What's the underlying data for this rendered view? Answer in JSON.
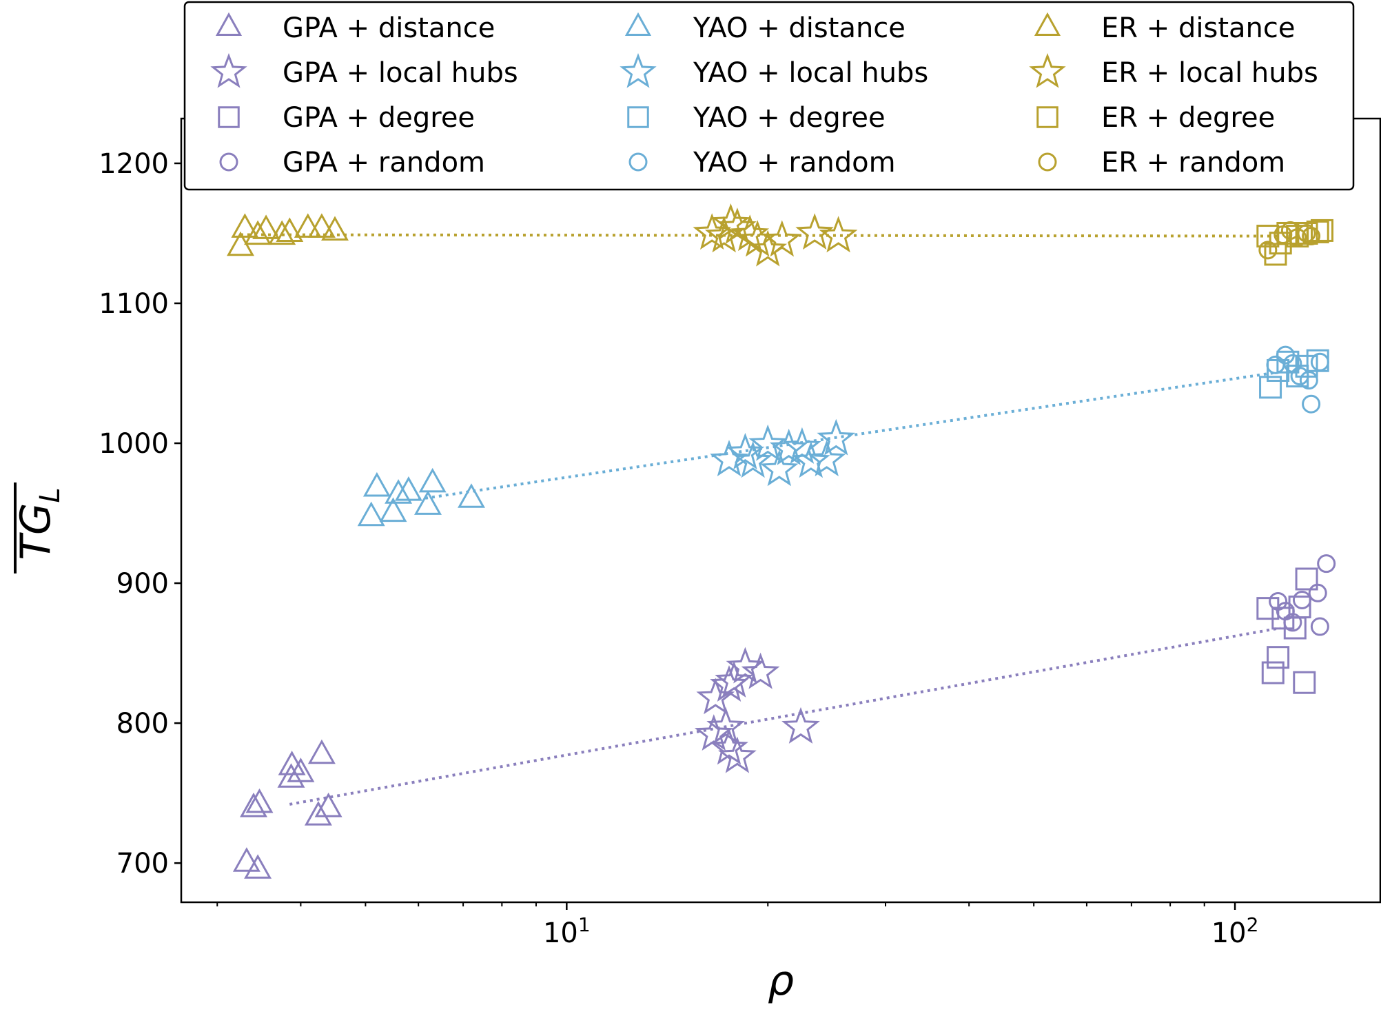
{
  "chart_data": {
    "type": "scatter",
    "xscale": "log",
    "xlim": [
      2.65,
      165
    ],
    "ylim": [
      672,
      1232
    ],
    "grid": false,
    "legend_position": "top",
    "xlabel": "ρ",
    "ylabel": "TG_L",
    "xticks": [
      {
        "value": 10,
        "base": "10",
        "exp": "1"
      },
      {
        "value": 100,
        "base": "10",
        "exp": "2"
      }
    ],
    "yticks": [
      700,
      800,
      900,
      1000,
      1100,
      1200
    ],
    "marker_shapes": {
      "distance": "triangle",
      "local hubs": "star",
      "degree": "square",
      "random": "circle"
    },
    "colors": {
      "GPA": "#8a7fbd",
      "YAO": "#6aaed6",
      "ER": "#b8a12e"
    },
    "series": [
      {
        "name": "GPA + distance",
        "color": "#8a7fbd",
        "marker": "triangle",
        "points": [
          [
            3.32,
            700
          ],
          [
            3.45,
            695
          ],
          [
            3.4,
            739
          ],
          [
            3.47,
            742
          ],
          [
            3.88,
            769
          ],
          [
            3.87,
            760
          ],
          [
            4.0,
            764
          ],
          [
            4.25,
            733
          ],
          [
            4.4,
            739
          ],
          [
            4.3,
            777
          ]
        ]
      },
      {
        "name": "GPA + local hubs",
        "color": "#8a7fbd",
        "marker": "star",
        "points": [
          [
            16.6,
            792
          ],
          [
            16.7,
            818
          ],
          [
            17.3,
            797
          ],
          [
            17.5,
            827
          ],
          [
            17.8,
            830
          ],
          [
            17.5,
            782
          ],
          [
            18.0,
            776
          ],
          [
            18.5,
            840
          ],
          [
            19.5,
            836
          ],
          [
            22.4,
            797
          ]
        ]
      },
      {
        "name": "GPA + degree",
        "color": "#8a7fbd",
        "marker": "square",
        "points": [
          [
            112,
            882
          ],
          [
            118,
            875
          ],
          [
            116,
            847
          ],
          [
            114,
            836
          ],
          [
            123,
            868
          ],
          [
            128,
            903
          ],
          [
            127,
            829
          ],
          [
            125,
            883
          ]
        ]
      },
      {
        "name": "GPA + random",
        "color": "#8a7fbd",
        "marker": "circle",
        "points": [
          [
            116,
            887
          ],
          [
            119,
            880
          ],
          [
            122,
            872
          ],
          [
            126,
            888
          ],
          [
            133,
            893
          ],
          [
            134,
            869
          ],
          [
            137,
            914
          ]
        ]
      },
      {
        "name": "GPA fit",
        "color": "#8a7fbd",
        "marker": "dotted-line",
        "points": [
          [
            3.85,
            742
          ],
          [
            117,
            868
          ]
        ]
      },
      {
        "name": "YAO + distance",
        "color": "#6aaed6",
        "marker": "triangle",
        "points": [
          [
            5.1,
            947
          ],
          [
            5.2,
            968
          ],
          [
            5.5,
            950
          ],
          [
            5.6,
            963
          ],
          [
            5.8,
            965
          ],
          [
            6.2,
            955
          ],
          [
            6.3,
            971
          ],
          [
            7.2,
            960
          ]
        ]
      },
      {
        "name": "YAO + local hubs",
        "color": "#6aaed6",
        "marker": "star",
        "points": [
          [
            17.5,
            988
          ],
          [
            18.5,
            993
          ],
          [
            19.0,
            987
          ],
          [
            20.0,
            999
          ],
          [
            20.8,
            981
          ],
          [
            21.5,
            996
          ],
          [
            22.5,
            997
          ],
          [
            23.2,
            987
          ],
          [
            24.5,
            988
          ],
          [
            25.3,
            1003
          ]
        ]
      },
      {
        "name": "YAO + degree",
        "color": "#6aaed6",
        "marker": "square",
        "points": [
          [
            113,
            1040
          ],
          [
            116,
            1052
          ],
          [
            120,
            1058
          ],
          [
            124,
            1048
          ],
          [
            128,
            1055
          ],
          [
            133,
            1059
          ]
        ]
      },
      {
        "name": "YAO + random",
        "color": "#6aaed6",
        "marker": "circle",
        "points": [
          [
            115,
            1056
          ],
          [
            119,
            1063
          ],
          [
            122,
            1057
          ],
          [
            125,
            1048
          ],
          [
            129,
            1045
          ],
          [
            130,
            1028
          ],
          [
            134,
            1058
          ]
        ]
      },
      {
        "name": "YAO fit",
        "color": "#6aaed6",
        "marker": "dotted-line",
        "points": [
          [
            6.0,
            960
          ],
          [
            117,
            1051
          ]
        ]
      },
      {
        "name": "ER + distance",
        "color": "#b8a12e",
        "marker": "triangle",
        "points": [
          [
            3.25,
            1140
          ],
          [
            3.3,
            1153
          ],
          [
            3.45,
            1148
          ],
          [
            3.55,
            1152
          ],
          [
            3.75,
            1148
          ],
          [
            3.85,
            1150
          ],
          [
            4.1,
            1153
          ],
          [
            4.3,
            1153
          ],
          [
            4.5,
            1151
          ]
        ]
      },
      {
        "name": "ER + local hubs",
        "color": "#b8a12e",
        "marker": "star",
        "points": [
          [
            16.5,
            1150
          ],
          [
            17.2,
            1148
          ],
          [
            17.6,
            1157
          ],
          [
            18.0,
            1154
          ],
          [
            18.8,
            1149
          ],
          [
            19.3,
            1145
          ],
          [
            20.0,
            1138
          ],
          [
            21.0,
            1145
          ],
          [
            23.5,
            1150
          ],
          [
            25.5,
            1148
          ]
        ]
      },
      {
        "name": "ER + degree",
        "color": "#b8a12e",
        "marker": "square",
        "points": [
          [
            112,
            1148
          ],
          [
            115,
            1135
          ],
          [
            117,
            1143
          ],
          [
            120,
            1150
          ],
          [
            124,
            1148
          ],
          [
            128,
            1150
          ],
          [
            133,
            1151
          ],
          [
            135,
            1152
          ]
        ]
      },
      {
        "name": "ER + random",
        "color": "#b8a12e",
        "marker": "circle",
        "points": [
          [
            112,
            1138
          ],
          [
            118,
            1149
          ],
          [
            121,
            1152
          ],
          [
            124,
            1147
          ],
          [
            128,
            1150
          ],
          [
            130,
            1148
          ]
        ]
      },
      {
        "name": "ER fit",
        "color": "#b8a12e",
        "marker": "dotted-line",
        "points": [
          [
            3.25,
            1149
          ],
          [
            117,
            1148
          ]
        ]
      }
    ],
    "legend": {
      "columns": [
        [
          {
            "label": "GPA + distance",
            "color": "#8a7fbd",
            "marker": "triangle"
          },
          {
            "label": "GPA + local hubs",
            "color": "#8a7fbd",
            "marker": "star"
          },
          {
            "label": "GPA + degree",
            "color": "#8a7fbd",
            "marker": "square"
          },
          {
            "label": "GPA + random",
            "color": "#8a7fbd",
            "marker": "circle"
          }
        ],
        [
          {
            "label": "YAO + distance",
            "color": "#6aaed6",
            "marker": "triangle"
          },
          {
            "label": "YAO + local hubs",
            "color": "#6aaed6",
            "marker": "star"
          },
          {
            "label": "YAO + degree",
            "color": "#6aaed6",
            "marker": "square"
          },
          {
            "label": "YAO + random",
            "color": "#6aaed6",
            "marker": "circle"
          }
        ],
        [
          {
            "label": "ER + distance",
            "color": "#b8a12e",
            "marker": "triangle"
          },
          {
            "label": "ER + local hubs",
            "color": "#b8a12e",
            "marker": "star"
          },
          {
            "label": "ER + degree",
            "color": "#b8a12e",
            "marker": "square"
          },
          {
            "label": "ER + random",
            "color": "#b8a12e",
            "marker": "circle"
          }
        ]
      ]
    }
  }
}
